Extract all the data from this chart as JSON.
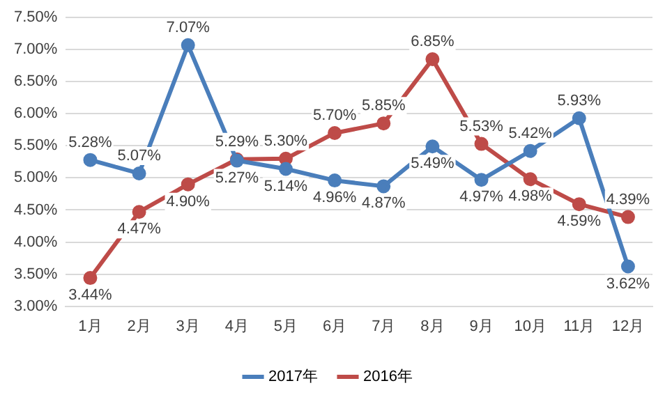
{
  "chart_data": {
    "type": "line",
    "categories": [
      "1月",
      "2月",
      "3月",
      "4月",
      "5月",
      "6月",
      "7月",
      "8月",
      "9月",
      "10月",
      "11月",
      "12月"
    ],
    "series": [
      {
        "name": "2017年",
        "color": "#4a7ebb",
        "values": [
          5.28,
          5.07,
          7.07,
          5.27,
          5.14,
          4.96,
          4.87,
          5.49,
          4.97,
          5.42,
          5.93,
          3.62
        ],
        "value_labels": [
          "5.28%",
          "5.07%",
          "7.07%",
          "5.27%",
          "5.14%",
          "4.96%",
          "4.87%",
          "5.49%",
          "4.97%",
          "5.42%",
          "5.93%",
          "3.62%"
        ]
      },
      {
        "name": "2016年",
        "color": "#be4b48",
        "values": [
          3.44,
          4.47,
          4.9,
          5.29,
          5.3,
          5.7,
          5.85,
          6.85,
          5.53,
          4.98,
          4.59,
          4.39
        ],
        "value_labels": [
          "3.44%",
          "4.47%",
          "4.90%",
          "5.29%",
          "5.30%",
          "5.70%",
          "5.85%",
          "6.85%",
          "5.53%",
          "4.98%",
          "4.59%",
          "4.39%"
        ]
      }
    ],
    "ylim": [
      3.0,
      7.5
    ],
    "yticks": [
      {
        "value": 3.0,
        "label": "3.00%"
      },
      {
        "value": 3.5,
        "label": "3.50%"
      },
      {
        "value": 4.0,
        "label": "4.00%"
      },
      {
        "value": 4.5,
        "label": "4.50%"
      },
      {
        "value": 5.0,
        "label": "5.00%"
      },
      {
        "value": 5.5,
        "label": "5.50%"
      },
      {
        "value": 6.0,
        "label": "6.00%"
      },
      {
        "value": 6.5,
        "label": "6.50%"
      },
      {
        "value": 7.0,
        "label": "7.00%"
      },
      {
        "value": 7.5,
        "label": "7.50%"
      }
    ],
    "grid": "y",
    "legend": "bottom",
    "marker": "circle",
    "line_style": "solid"
  }
}
